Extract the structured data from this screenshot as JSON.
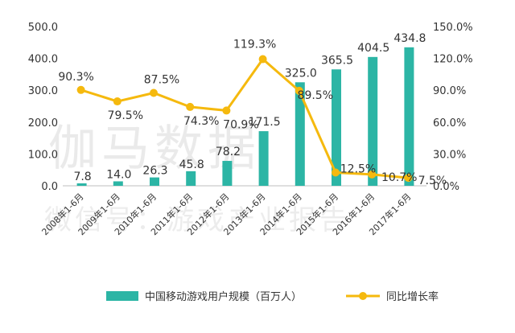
{
  "watermark": {
    "line1": "伽马数据",
    "line2": "微信号：游戏产业报告"
  },
  "chart_data": {
    "type": "bar+line",
    "categories": [
      "2008年1-6月",
      "2009年1-6月",
      "2010年1-6月",
      "2011年1-6月",
      "2012年1-6月",
      "2013年1-6月",
      "2014年1-6月",
      "2015年1-6月",
      "2016年1-6月",
      "2017年1-6月"
    ],
    "series": [
      {
        "name": "中国移动游戏用户规模（百万人）",
        "type": "bar",
        "axis": "left",
        "color": "#2cb5a5",
        "values": [
          7.8,
          14.0,
          26.3,
          45.8,
          78.2,
          171.5,
          325.0,
          365.5,
          404.5,
          434.8
        ],
        "labels": [
          "7.8",
          "14.0",
          "26.3",
          "45.8",
          "78.2",
          "171.5",
          "325.0",
          "365.5",
          "404.5",
          "434.8"
        ]
      },
      {
        "name": "同比增长率",
        "type": "line",
        "axis": "right",
        "color": "#f5b90e",
        "values": [
          90.3,
          79.5,
          87.5,
          74.3,
          70.9,
          119.3,
          89.5,
          12.5,
          10.7,
          7.5
        ],
        "labels": [
          "90.3%",
          "79.5%",
          "87.5%",
          "74.3%",
          "70.9%",
          "119.3%",
          "89.5%",
          "12.5%",
          "10.7%",
          "7.5%"
        ]
      }
    ],
    "y_left": {
      "min": 0,
      "max": 500,
      "ticks": [
        "0.0",
        "100.0",
        "200.0",
        "300.0",
        "400.0",
        "500.0"
      ]
    },
    "y_right": {
      "min": 0,
      "max": 150,
      "ticks": [
        "0.0%",
        "30.0%",
        "60.0%",
        "90.0%",
        "120.0%",
        "150.0%"
      ]
    },
    "grid": false,
    "legend": "bottom"
  }
}
